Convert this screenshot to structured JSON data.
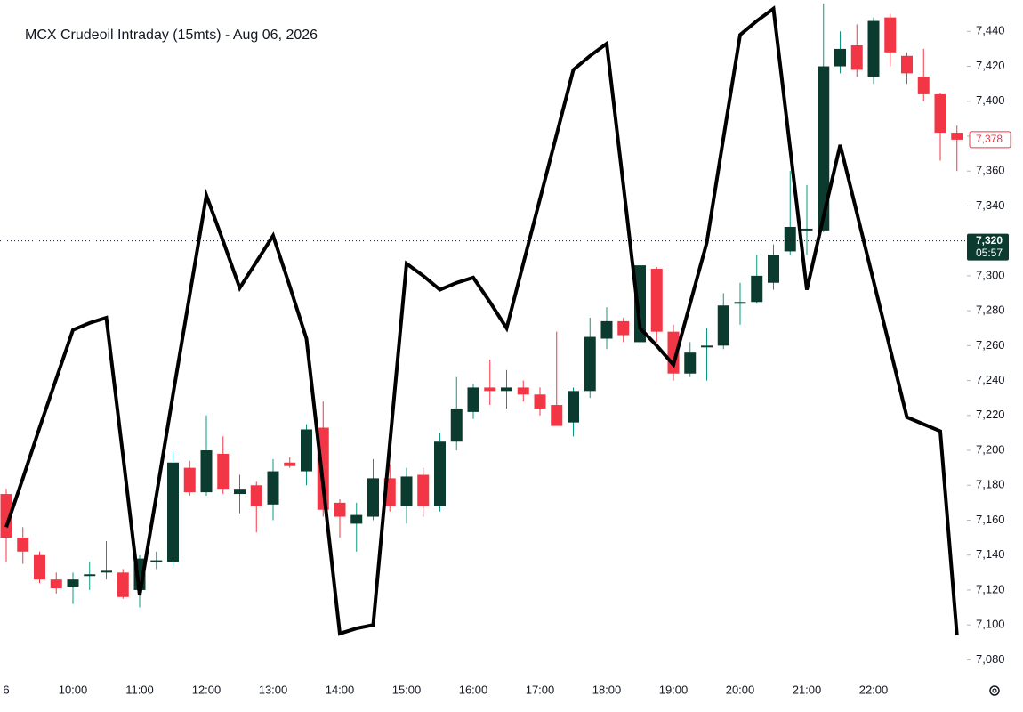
{
  "chart_data": {
    "type": "candlestick",
    "title": "MCX Crudeoil Intraday (15mts) - Aug 06, 2026",
    "categories": [
      "6",
      null,
      null,
      null,
      "10:00",
      null,
      null,
      null,
      "11:00",
      null,
      null,
      null,
      "12:00",
      null,
      null,
      null,
      "13:00",
      null,
      null,
      null,
      "14:00",
      null,
      null,
      null,
      "15:00",
      null,
      null,
      null,
      "16:00",
      null,
      null,
      null,
      "17:00",
      null,
      null,
      null,
      "18:00",
      null,
      null,
      null,
      "19:00",
      null,
      null,
      null,
      "20:00",
      null,
      null,
      null,
      "21:00",
      null,
      null,
      null,
      "22:00",
      null,
      null,
      null,
      null,
      null
    ],
    "open": [
      7175,
      7150,
      7140,
      7126,
      7122,
      7128,
      7130,
      7130,
      7120,
      7136,
      7136,
      7190,
      7176,
      7198,
      7175,
      7180,
      7169,
      7193,
      7188,
      7213,
      7170,
      7158,
      7162,
      7184,
      7168,
      7186,
      7168,
      7205,
      7222,
      7236,
      7234,
      7236,
      7232,
      7226,
      7216,
      7234,
      7264,
      7274,
      7262,
      7304,
      7268,
      7244,
      7259,
      7260,
      7284,
      7285,
      7296,
      7314,
      7326,
      7326,
      7420,
      7432,
      7414,
      7448,
      7426,
      7414,
      7404,
      7382
    ],
    "high": [
      7178,
      7156,
      7142,
      7130,
      7130,
      7136,
      7148,
      7132,
      7140,
      7142,
      7199,
      7194,
      7220,
      7208,
      7186,
      7182,
      7195,
      7196,
      7215,
      7228,
      7172,
      7170,
      7195,
      7192,
      7190,
      7190,
      7210,
      7242,
      7238,
      7252,
      7246,
      7240,
      7236,
      7268,
      7236,
      7276,
      7282,
      7276,
      7324,
      7305,
      7272,
      7262,
      7270,
      7290,
      7296,
      7312,
      7318,
      7360,
      7352,
      7456,
      7440,
      7444,
      7448,
      7450,
      7428,
      7430,
      7405,
      7386
    ],
    "low": [
      7136,
      7135,
      7124,
      7118,
      7112,
      7120,
      7126,
      7115,
      7110,
      7132,
      7134,
      7174,
      7174,
      7175,
      7164,
      7153,
      7160,
      7190,
      7180,
      7162,
      7150,
      7142,
      7160,
      7165,
      7158,
      7162,
      7165,
      7200,
      7218,
      7226,
      7224,
      7228,
      7220,
      7214,
      7208,
      7230,
      7258,
      7262,
      7258,
      7262,
      7240,
      7242,
      7240,
      7258,
      7272,
      7284,
      7292,
      7312,
      7312,
      7325,
      7416,
      7414,
      7410,
      7420,
      7410,
      7400,
      7366,
      7360
    ],
    "close": [
      7150,
      7142,
      7126,
      7121,
      7126,
      7129,
      7131,
      7116,
      7138,
      7137,
      7193,
      7176,
      7200,
      7178,
      7178,
      7168,
      7188,
      7191,
      7212,
      7166,
      7162,
      7163,
      7184,
      7168,
      7185,
      7168,
      7205,
      7224,
      7236,
      7234,
      7236,
      7232,
      7224,
      7214,
      7234,
      7265,
      7274,
      7266,
      7306,
      7268,
      7244,
      7256,
      7260,
      7283,
      7285,
      7300,
      7312,
      7328,
      7327,
      7420,
      7430,
      7418,
      7446,
      7428,
      7416,
      7404,
      7382,
      7378
    ],
    "up_color": "#0b3b2e",
    "up_wick_color": "#089981",
    "down_color": "#f23645",
    "overlay": {
      "type": "line",
      "color": "#000000",
      "values": [
        7156,
        7184,
        7213,
        7241,
        7269,
        7273,
        7276,
        7197,
        7117,
        7174,
        7232,
        7289,
        7346,
        7320,
        7293,
        7308,
        7323,
        7294,
        7264,
        7180,
        7095,
        7098,
        7100,
        7204,
        7307,
        7300,
        7292,
        7296,
        7299,
        7285,
        7270,
        7307,
        7344,
        7381,
        7418,
        7426,
        7433,
        7352,
        7270,
        7260,
        7249,
        7284,
        7319,
        7379,
        7438,
        7446,
        7453,
        7373,
        7292,
        7334,
        7375,
        7336,
        7297,
        7258,
        7219,
        7215,
        7211,
        7094
      ]
    },
    "ylim": [
      7070,
      7458
    ],
    "yticks": [
      {
        "value": 7080,
        "label": "7,080"
      },
      {
        "value": 7100,
        "label": "7,100"
      },
      {
        "value": 7120,
        "label": "7,120"
      },
      {
        "value": 7140,
        "label": "7,140"
      },
      {
        "value": 7160,
        "label": "7,160"
      },
      {
        "value": 7180,
        "label": "7,180"
      },
      {
        "value": 7200,
        "label": "7,200"
      },
      {
        "value": 7220,
        "label": "7,220"
      },
      {
        "value": 7240,
        "label": "7,240"
      },
      {
        "value": 7260,
        "label": "7,260"
      },
      {
        "value": 7280,
        "label": "7,280"
      },
      {
        "value": 7300,
        "label": "7,300"
      },
      {
        "value": 7320,
        "label": "7,320"
      },
      {
        "value": 7340,
        "label": "7,340"
      },
      {
        "value": 7360,
        "label": "7,360"
      },
      {
        "value": 7380,
        "label": "7,380"
      },
      {
        "value": 7400,
        "label": "7,400"
      },
      {
        "value": 7420,
        "label": "7,420"
      },
      {
        "value": 7440,
        "label": "7,440"
      }
    ],
    "last_price": {
      "value": 7378,
      "label": "7,378"
    },
    "crosshair": {
      "value": 7320,
      "label": "7,320",
      "countdown": "05:57"
    }
  }
}
